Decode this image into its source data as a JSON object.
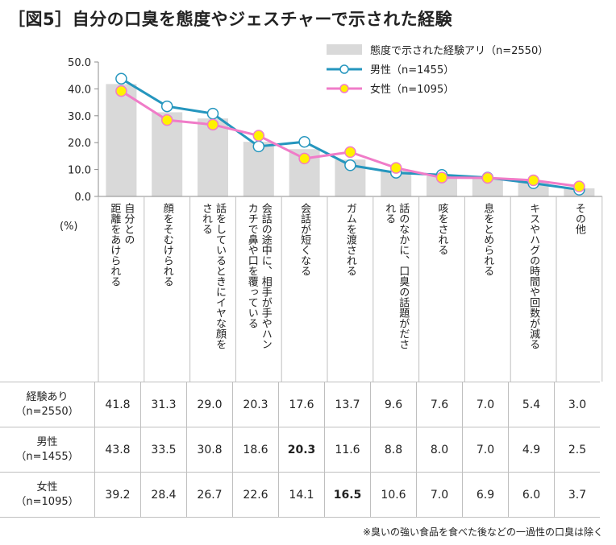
{
  "title": "［図5］自分の口臭を態度やジェスチャーで示された経験",
  "unit_label": "(%)",
  "footnote": "※臭いの強い食品を食べた後などの一過性の口臭は除く",
  "colors": {
    "bar": "#d9d9d9",
    "male": "#2596be",
    "female": "#f07cc8",
    "female_marker": "#fff200"
  },
  "chart_data": {
    "type": "bar",
    "title": "［図5］自分の口臭を態度やジェスチャーで示された経験",
    "ylabel": "(%)",
    "ylim": [
      0,
      50
    ],
    "yticks": [
      "0.0",
      "10.0",
      "20.0",
      "30.0",
      "40.0",
      "50.0"
    ],
    "yticks_values": [
      0,
      10,
      20,
      30,
      40,
      50
    ],
    "grid": false,
    "legend_position": "top-right",
    "categories": [
      "自分との距離をあけられる",
      "顔をそむけられる",
      "話をしているときにイヤな顔をされる",
      "会話の途中に、相手が手やハンカチで鼻や口を覆っている",
      "会話が短くなる",
      "ガムを渡される",
      "話のなかに、口臭の話題がだされる",
      "咳をされる",
      "息をとめられる",
      "キスやハグの時間や回数が減る",
      "その他"
    ],
    "category_columns": [
      [
        "自分との",
        "距離をあけられる"
      ],
      [
        "顔をそむけられる"
      ],
      [
        "話をしているときにイヤな顔を",
        "される"
      ],
      [
        "会話の途中に、相手が手やハン",
        "カチで鼻や口を覆っている"
      ],
      [
        "会話が短くなる"
      ],
      [
        "ガムを渡される"
      ],
      [
        "話のなかに、口臭の話題がださ",
        "れる"
      ],
      [
        "咳をされる"
      ],
      [
        "息をとめられる"
      ],
      [
        "キスやハグの時間や回数が減る"
      ],
      [
        "その他"
      ]
    ],
    "series": [
      {
        "name": "態度で示された経験アリ（n=2550）",
        "kind": "bar",
        "values": [
          41.8,
          31.3,
          29.0,
          20.3,
          17.6,
          13.7,
          9.6,
          7.6,
          7.0,
          5.4,
          3.0
        ]
      },
      {
        "name": "男性（n=1455）",
        "kind": "line",
        "values": [
          43.8,
          33.5,
          30.8,
          18.6,
          20.3,
          11.6,
          8.8,
          8.0,
          7.0,
          4.9,
          2.5
        ]
      },
      {
        "name": "女性（n=1095）",
        "kind": "line",
        "values": [
          39.2,
          28.4,
          26.7,
          22.6,
          14.1,
          16.5,
          10.6,
          7.0,
          6.9,
          6.0,
          3.7
        ]
      }
    ]
  },
  "table": {
    "rows": [
      {
        "head": [
          "経験あり",
          "（n=2550）"
        ],
        "cells": [
          "41.8",
          "31.3",
          "29.0",
          "20.3",
          "17.6",
          "13.7",
          "9.6",
          "7.6",
          "7.0",
          "5.4",
          "3.0"
        ],
        "bold": []
      },
      {
        "head": [
          "男性",
          "（n=1455）"
        ],
        "cells": [
          "43.8",
          "33.5",
          "30.8",
          "18.6",
          "20.3",
          "11.6",
          "8.8",
          "8.0",
          "7.0",
          "4.9",
          "2.5"
        ],
        "bold": [
          4
        ]
      },
      {
        "head": [
          "女性",
          "（n=1095）"
        ],
        "cells": [
          "39.2",
          "28.4",
          "26.7",
          "22.6",
          "14.1",
          "16.5",
          "10.6",
          "7.0",
          "6.9",
          "6.0",
          "3.7"
        ],
        "bold": [
          5
        ]
      }
    ]
  }
}
